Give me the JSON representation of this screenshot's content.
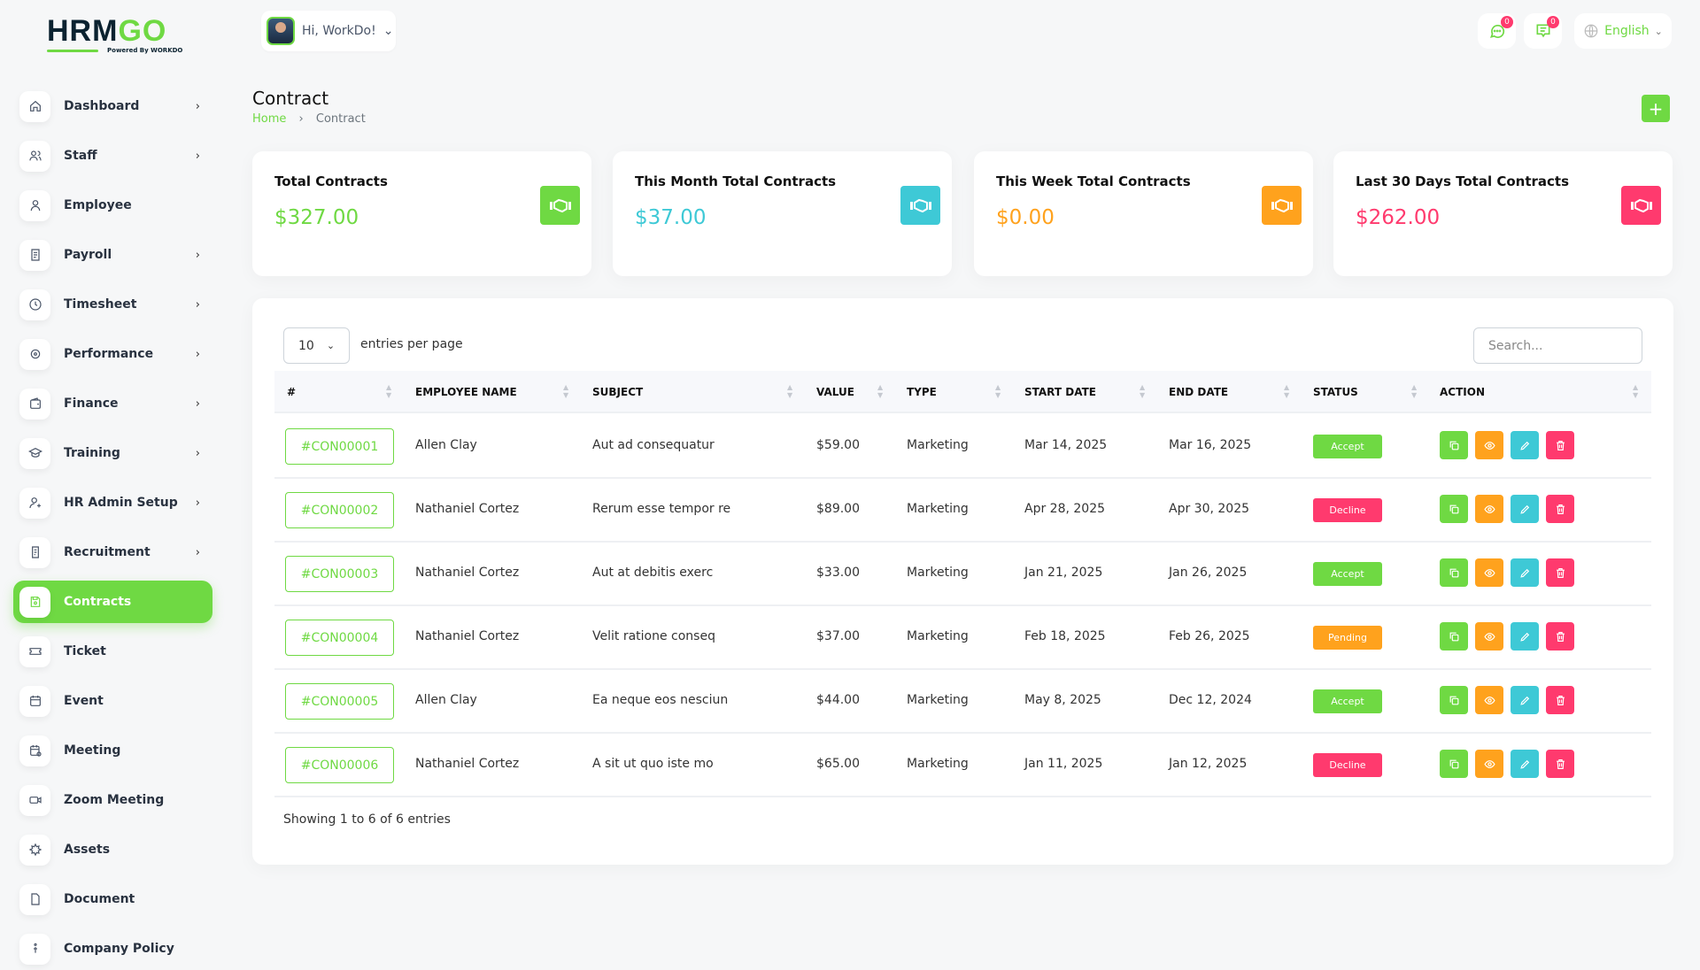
{
  "logo": {
    "text_a": "HRM",
    "text_b": "GO",
    "powered": "Powered By WORKDO"
  },
  "header": {
    "greeting": "Hi, WorkDo!",
    "messages_count": "0",
    "notifications_count": "0",
    "language": "English"
  },
  "sidebar": {
    "items": [
      {
        "label": "Dashboard",
        "icon": "home-icon",
        "arrow": true
      },
      {
        "label": "Staff",
        "icon": "users-icon",
        "arrow": true
      },
      {
        "label": "Employee",
        "icon": "user-icon",
        "arrow": false
      },
      {
        "label": "Payroll",
        "icon": "receipt-icon",
        "arrow": true
      },
      {
        "label": "Timesheet",
        "icon": "clock-icon",
        "arrow": true
      },
      {
        "label": "Performance",
        "icon": "target-icon",
        "arrow": true
      },
      {
        "label": "Finance",
        "icon": "wallet-icon",
        "arrow": true
      },
      {
        "label": "Training",
        "icon": "graduation-cap-icon",
        "arrow": true
      },
      {
        "label": "HR Admin Setup",
        "icon": "user-plus-icon",
        "arrow": true
      },
      {
        "label": "Recruitment",
        "icon": "clipboard-icon",
        "arrow": true
      },
      {
        "label": "Contracts",
        "icon": "contract-icon",
        "arrow": false,
        "active": true
      },
      {
        "label": "Ticket",
        "icon": "ticket-icon",
        "arrow": false
      },
      {
        "label": "Event",
        "icon": "calendar-icon",
        "arrow": false
      },
      {
        "label": "Meeting",
        "icon": "calendar-clock-icon",
        "arrow": false
      },
      {
        "label": "Zoom Meeting",
        "icon": "video-icon",
        "arrow": false
      },
      {
        "label": "Assets",
        "icon": "asset-icon",
        "arrow": false
      },
      {
        "label": "Document",
        "icon": "file-icon",
        "arrow": false
      },
      {
        "label": "Company Policy",
        "icon": "policy-icon",
        "arrow": false
      }
    ]
  },
  "page": {
    "title": "Contract",
    "breadcrumb": [
      "Home",
      "Contract"
    ]
  },
  "cards": [
    {
      "title": "Total Contracts",
      "value": "$327.00",
      "color": "#6fd943"
    },
    {
      "title": "This Month Total Contracts",
      "value": "$37.00",
      "color": "#3ec9d6"
    },
    {
      "title": "This Week Total Contracts",
      "value": "$0.00",
      "color": "#ffa21d"
    },
    {
      "title": "Last 30 Days Total Contracts",
      "value": "$262.00",
      "color": "#ff3a6e"
    }
  ],
  "table": {
    "page_size": "10",
    "entries_label": "entries per page",
    "search_placeholder": "Search...",
    "columns": [
      "#",
      "EMPLOYEE NAME",
      "SUBJECT",
      "VALUE",
      "TYPE",
      "START DATE",
      "END DATE",
      "STATUS",
      "ACTION"
    ],
    "rows": [
      {
        "id": "#CON00001",
        "employee": "Allen Clay",
        "subject": "Aut ad consequatur",
        "value": "$59.00",
        "type": "Marketing",
        "start": "Mar 14, 2025",
        "end": "Mar 16, 2025",
        "status": "Accept"
      },
      {
        "id": "#CON00002",
        "employee": "Nathaniel Cortez",
        "subject": "Rerum esse tempor re",
        "value": "$89.00",
        "type": "Marketing",
        "start": "Apr 28, 2025",
        "end": "Apr 30, 2025",
        "status": "Decline"
      },
      {
        "id": "#CON00003",
        "employee": "Nathaniel Cortez",
        "subject": "Aut at debitis exerc",
        "value": "$33.00",
        "type": "Marketing",
        "start": "Jan 21, 2025",
        "end": "Jan 26, 2025",
        "status": "Accept"
      },
      {
        "id": "#CON00004",
        "employee": "Nathaniel Cortez",
        "subject": "Velit ratione conseq",
        "value": "$37.00",
        "type": "Marketing",
        "start": "Feb 18, 2025",
        "end": "Feb 26, 2025",
        "status": "Pending"
      },
      {
        "id": "#CON00005",
        "employee": "Allen Clay",
        "subject": "Ea neque eos nesciun",
        "value": "$44.00",
        "type": "Marketing",
        "start": "May 8, 2025",
        "end": "Dec 12, 2024",
        "status": "Accept"
      },
      {
        "id": "#CON00006",
        "employee": "Nathaniel Cortez",
        "subject": "A sit ut quo iste mo",
        "value": "$65.00",
        "type": "Marketing",
        "start": "Jan 11, 2025",
        "end": "Jan 12, 2025",
        "status": "Decline"
      }
    ],
    "footer": "Showing 1 to 6 of 6 entries"
  },
  "status_colors": {
    "Accept": "#6fd943",
    "Decline": "#ff3a6e",
    "Pending": "#ffa21d"
  },
  "action_colors": {
    "copy": "#6fd943",
    "view": "#ffa21d",
    "edit": "#3ec9d6",
    "delete": "#ff3a6e"
  }
}
